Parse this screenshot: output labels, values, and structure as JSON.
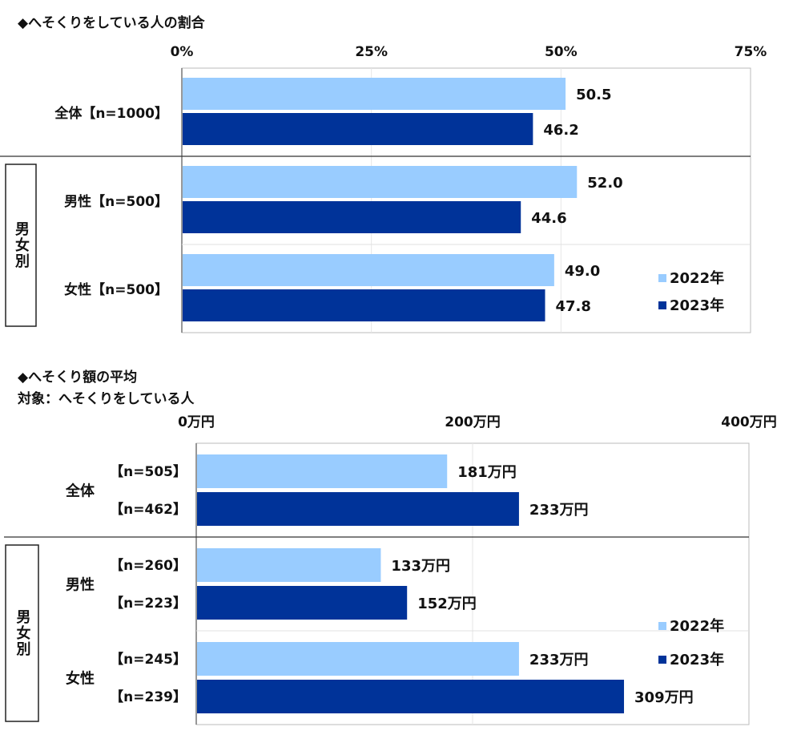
{
  "colors": {
    "y2022": "#99ccff",
    "y2023": "#003399"
  },
  "chart_data": [
    {
      "type": "bar",
      "orientation": "horizontal",
      "title": "◆へそくりをしている人の割合",
      "xlim": [
        0,
        75
      ],
      "ticks": [
        "0%",
        "25%",
        "50%",
        "75%"
      ],
      "tick_values": [
        0,
        25,
        50,
        75
      ],
      "group_label": "男女別",
      "categories": [
        "全体【n=1000】",
        "男性【n=500】",
        "女性【n=500】"
      ],
      "series": [
        {
          "name": "2022年",
          "values": [
            50.5,
            52.0,
            49.0
          ],
          "labels": [
            "50.5",
            "52.0",
            "49.0"
          ]
        },
        {
          "name": "2023年",
          "values": [
            46.2,
            44.6,
            47.8
          ],
          "labels": [
            "46.2",
            "44.6",
            "47.8"
          ]
        }
      ],
      "legend": "bottom-right"
    },
    {
      "type": "bar",
      "orientation": "horizontal",
      "title": "◆へそくり額の平均",
      "subtitle": "対象：へそくりをしている人",
      "xlim": [
        0,
        400
      ],
      "ticks": [
        "0万円",
        "200万円",
        "400万円"
      ],
      "tick_values": [
        0,
        200,
        400
      ],
      "group_label": "男女別",
      "categories": [
        "全体",
        "男性",
        "女性"
      ],
      "n_labels": [
        [
          "【n=505】",
          "【n=462】"
        ],
        [
          "【n=260】",
          "【n=223】"
        ],
        [
          "【n=245】",
          "【n=239】"
        ]
      ],
      "series": [
        {
          "name": "2022年",
          "values": [
            181,
            133,
            233
          ],
          "labels": [
            "181万円",
            "133万円",
            "233万円"
          ]
        },
        {
          "name": "2023年",
          "values": [
            233,
            152,
            309
          ],
          "labels": [
            "233万円",
            "152万円",
            "309万円"
          ]
        }
      ],
      "legend": "bottom-right"
    }
  ]
}
